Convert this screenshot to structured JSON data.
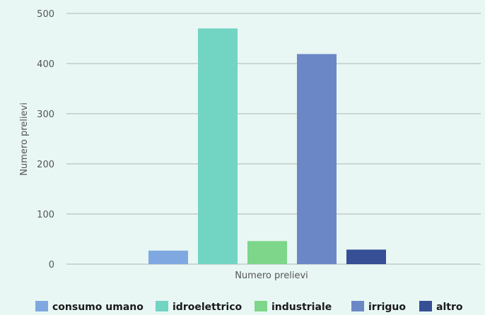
{
  "chart_data": {
    "type": "bar",
    "title": "",
    "xlabel": "Numero prelievi",
    "ylabel": "Numero prelievi",
    "categories": [
      "Numero prelievi"
    ],
    "ylim": [
      0,
      500
    ],
    "yticks": [
      0,
      100,
      200,
      300,
      400,
      500
    ],
    "grid": true,
    "legend_position": "bottom",
    "series": [
      {
        "name": "consumo umano",
        "values": [
          27
        ],
        "color": "#7fa8e0"
      },
      {
        "name": "idroelettrico",
        "values": [
          470
        ],
        "color": "#72d4c2"
      },
      {
        "name": "industriale",
        "values": [
          46
        ],
        "color": "#7dd689"
      },
      {
        "name": "irriguo",
        "values": [
          419
        ],
        "color": "#6c87c6"
      },
      {
        "name": "altro",
        "values": [
          29
        ],
        "color": "#364f95"
      }
    ],
    "colors": {
      "plot_background": "#e8f7f4",
      "grid": "#b0b4b3",
      "axis_text": "#555555",
      "legend_text": "#1a1a1a"
    }
  }
}
